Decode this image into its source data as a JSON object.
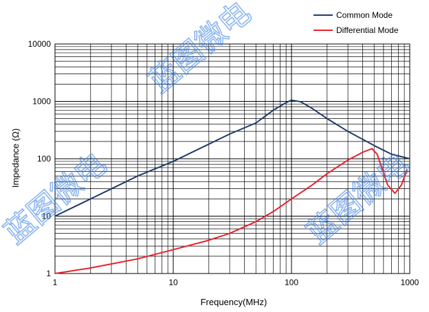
{
  "chart_data": {
    "type": "line",
    "xscale": "log",
    "yscale": "log",
    "xlim": [
      1,
      1000
    ],
    "ylim": [
      1,
      10000
    ],
    "xlabel": "Frequency(MHz)",
    "ylabel": "Impedance (Ω)",
    "x_ticks": [
      "1",
      "10",
      "100",
      "1000"
    ],
    "y_ticks": [
      "1",
      "10",
      "100",
      "1000",
      "10000"
    ],
    "grid": true,
    "legend_position": "top-right",
    "series": [
      {
        "name": "Common Mode",
        "color": "#1f3a68",
        "x": [
          1,
          1.5,
          2,
          3,
          5,
          10,
          20,
          30,
          50,
          70,
          90,
          100,
          120,
          150,
          200,
          300,
          500,
          700,
          1000
        ],
        "y": [
          10,
          15,
          20,
          30,
          50,
          90,
          180,
          270,
          420,
          700,
          950,
          1050,
          980,
          750,
          500,
          300,
          170,
          120,
          100
        ]
      },
      {
        "name": "Differential Mode",
        "color": "#e8202a",
        "x": [
          1,
          2,
          5,
          10,
          20,
          30,
          50,
          70,
          100,
          150,
          200,
          300,
          400,
          480,
          530,
          580,
          650,
          750,
          850,
          950
        ],
        "y": [
          1,
          1.25,
          1.8,
          2.6,
          3.8,
          5,
          8,
          12,
          20,
          35,
          55,
          95,
          130,
          150,
          120,
          70,
          35,
          25,
          35,
          65
        ]
      }
    ]
  },
  "watermark": {
    "text": "蓝图微电"
  }
}
